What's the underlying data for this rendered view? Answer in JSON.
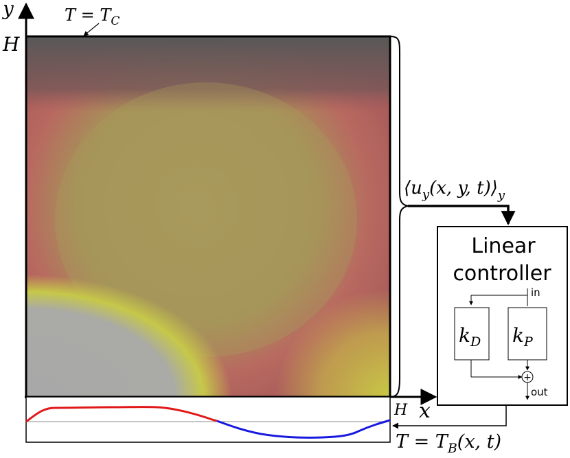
{
  "labels": {
    "y_axis": "y",
    "x_axis": "x",
    "height_y": "H",
    "height_x": "H",
    "top_temp": "T = T",
    "top_temp_sub": "C",
    "bottom_temp": "T = T",
    "bottom_temp_sub": "B",
    "bottom_temp_args": "(x, t)",
    "avg_velocity": "⟨u",
    "avg_velocity_sub": "y",
    "avg_velocity_args": "(x, y, t)⟩",
    "avg_velocity_outer_sub": "y"
  },
  "controller": {
    "title_line1": "Linear",
    "title_line2": "controller",
    "in_label": "in",
    "out_label": "out",
    "kd_symbol": "k",
    "kd_sub": "D",
    "kp_symbol": "k",
    "kp_sub": "P",
    "sum_symbol": "+"
  },
  "colors": {
    "hot_region": "#a89a5c",
    "warm_region": "#b86060",
    "cold_corner": "#5a5a5a",
    "cool_corner": "#a8a8a8",
    "yellow_band": "#c6c84a",
    "profile_hot": "#e01818",
    "profile_cold": "#1818e0"
  }
}
